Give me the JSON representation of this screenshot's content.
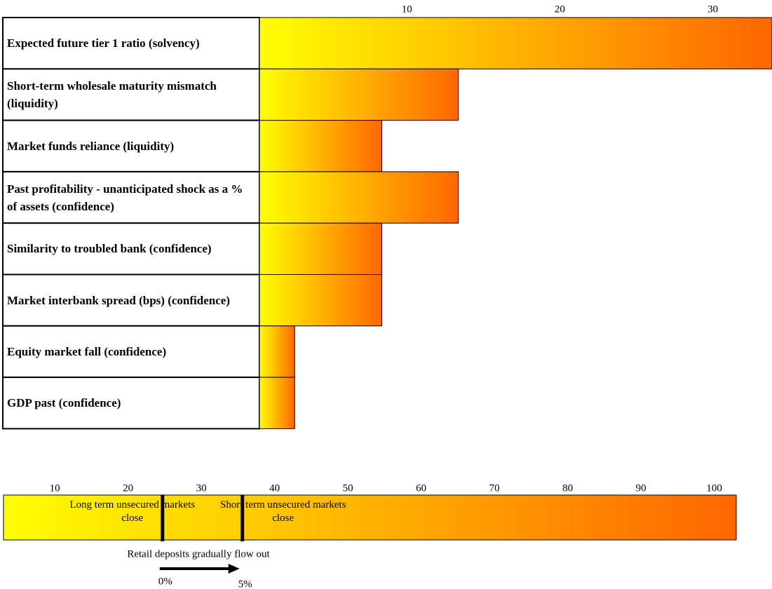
{
  "chart_data": [
    {
      "type": "bar",
      "categories": [
        "Expected future tier 1 ratio (solvency)",
        "Short-term wholesale maturity mismatch (liquidity)",
        "Market funds reliance (liquidity)",
        "Past profitability - unanticipated shock as a % of assets (confidence)",
        "Similarity to troubled bank (confidence)",
        "Market interbank spread (bps) (confidence)",
        "Equity market fall (confidence)",
        "GDP past (confidence)"
      ],
      "values": [
        33.5,
        13,
        8,
        13,
        8,
        8,
        2.3,
        2.3
      ],
      "xlim": [
        0,
        33.5
      ],
      "xticks": [
        10,
        20,
        30
      ],
      "colors": [
        "#ffff00",
        "#ff6600"
      ]
    },
    {
      "type": "scale",
      "xlim": [
        3,
        103
      ],
      "xticks": [
        10,
        20,
        30,
        40,
        50,
        60,
        70,
        80,
        90,
        100
      ],
      "colors": [
        "#ffff00",
        "#ff6600"
      ],
      "markers": [
        {
          "value": 24.7,
          "label": "Long term unsecured markets close"
        },
        {
          "value": 35.6,
          "label": "Short term unsecured markets close"
        }
      ],
      "annotation": "Retail deposits gradually flow out",
      "arrow": [
        {
          "value": 0,
          "label": "0%"
        },
        {
          "value": 5,
          "label": "5%"
        }
      ]
    }
  ]
}
